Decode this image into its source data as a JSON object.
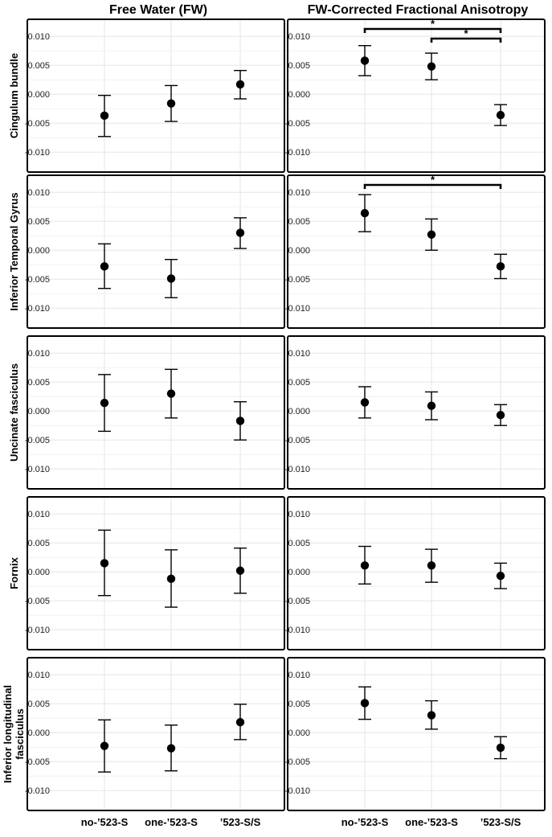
{
  "column_titles": [
    "Free Water (FW)",
    "FW-Corrected Fractional Anisotropy"
  ],
  "row_labels": [
    [
      "Cingulum bundle"
    ],
    [
      "Inferior Temporal Gyrus"
    ],
    [
      "Uncinate fasciculus"
    ],
    [
      "Fornix"
    ],
    [
      "Inferior longitudinal",
      "fasciculus"
    ]
  ],
  "x_categories": [
    "no-’523-S",
    "one-’523-S",
    "’523-S/S"
  ],
  "y_ticks": [
    "0.010",
    "0.005",
    "0.000",
    "-0.005",
    "-0.010"
  ],
  "significance_marker": "*",
  "colors": {
    "point": "#000000",
    "grid": "#e6e6e6",
    "frame": "#000000"
  },
  "chart_data": [
    {
      "type": "scatter",
      "panel": "Cingulum bundle / Free Water (FW)",
      "categories": [
        "no-’523-S",
        "one-’523-S",
        "’523-S/S"
      ],
      "ylim": [
        -0.0115,
        0.011
      ],
      "series": [
        {
          "values": [
            -0.0037,
            -0.0016,
            0.0017
          ],
          "lower": [
            -0.0073,
            -0.0047,
            -0.0008
          ],
          "upper": [
            -0.0002,
            0.0015,
            0.0041
          ]
        }
      ],
      "significance": []
    },
    {
      "type": "scatter",
      "panel": "Cingulum bundle / FW-Corrected Fractional Anisotropy",
      "categories": [
        "no-’523-S",
        "one-’523-S",
        "’523-S/S"
      ],
      "ylim": [
        -0.0115,
        0.011
      ],
      "series": [
        {
          "values": [
            0.0058,
            0.0048,
            -0.0036
          ],
          "lower": [
            0.0032,
            0.0025,
            -0.0054
          ],
          "upper": [
            0.0084,
            0.0071,
            -0.0018
          ]
        }
      ],
      "significance": [
        {
          "from": 0,
          "to": 2,
          "label": "*"
        },
        {
          "from": 1,
          "to": 2,
          "label": "*"
        }
      ]
    },
    {
      "type": "scatter",
      "panel": "Inferior Temporal Gyrus / Free Water (FW)",
      "categories": [
        "no-’523-S",
        "one-’523-S",
        "’523-S/S"
      ],
      "ylim": [
        -0.0115,
        0.011
      ],
      "series": [
        {
          "values": [
            -0.0028,
            -0.0049,
            0.003
          ],
          "lower": [
            -0.0066,
            -0.0082,
            0.0003
          ],
          "upper": [
            0.0011,
            -0.0016,
            0.0056
          ]
        }
      ],
      "significance": []
    },
    {
      "type": "scatter",
      "panel": "Inferior Temporal Gyrus / FW-Corrected Fractional Anisotropy",
      "categories": [
        "no-’523-S",
        "one-’523-S",
        "’523-S/S"
      ],
      "ylim": [
        -0.0115,
        0.011
      ],
      "series": [
        {
          "values": [
            0.0064,
            0.0027,
            -0.0028
          ],
          "lower": [
            0.0032,
            0.0,
            -0.0049
          ],
          "upper": [
            0.0096,
            0.0054,
            -0.0007
          ]
        }
      ],
      "significance": [
        {
          "from": 0,
          "to": 2,
          "label": "*"
        }
      ]
    },
    {
      "type": "scatter",
      "panel": "Uncinate fasciculus / Free Water (FW)",
      "categories": [
        "no-’523-S",
        "one-’523-S",
        "’523-S/S"
      ],
      "ylim": [
        -0.0115,
        0.011
      ],
      "series": [
        {
          "values": [
            0.0014,
            0.003,
            -0.0017
          ],
          "lower": [
            -0.0035,
            -0.0012,
            -0.005
          ],
          "upper": [
            0.0063,
            0.0072,
            0.0016
          ]
        }
      ],
      "significance": []
    },
    {
      "type": "scatter",
      "panel": "Uncinate fasciculus / FW-Corrected Fractional Anisotropy",
      "categories": [
        "no-’523-S",
        "one-’523-S",
        "’523-S/S"
      ],
      "ylim": [
        -0.0115,
        0.011
      ],
      "series": [
        {
          "values": [
            0.0015,
            0.0009,
            -0.0007
          ],
          "lower": [
            -0.0012,
            -0.0015,
            -0.0025
          ],
          "upper": [
            0.0042,
            0.0033,
            0.0011
          ]
        }
      ],
      "significance": []
    },
    {
      "type": "scatter",
      "panel": "Fornix / Free Water (FW)",
      "categories": [
        "no-’523-S",
        "one-’523-S",
        "’523-S/S"
      ],
      "ylim": [
        -0.0115,
        0.011
      ],
      "series": [
        {
          "values": [
            0.0015,
            -0.0012,
            0.0002
          ],
          "lower": [
            -0.0041,
            -0.0061,
            -0.0037
          ],
          "upper": [
            0.0072,
            0.0038,
            0.0041
          ]
        }
      ],
      "significance": []
    },
    {
      "type": "scatter",
      "panel": "Fornix / FW-Corrected Fractional Anisotropy",
      "categories": [
        "no-’523-S",
        "one-’523-S",
        "’523-S/S"
      ],
      "ylim": [
        -0.0115,
        0.011
      ],
      "series": [
        {
          "values": [
            0.0011,
            0.0011,
            -0.0007
          ],
          "lower": [
            -0.0021,
            -0.0018,
            -0.0029
          ],
          "upper": [
            0.0044,
            0.0039,
            0.0015
          ]
        }
      ],
      "significance": []
    },
    {
      "type": "scatter",
      "panel": "Inferior longitudinal fasciculus / Free Water (FW)",
      "categories": [
        "no-’523-S",
        "one-’523-S",
        "’523-S/S"
      ],
      "ylim": [
        -0.0115,
        0.011
      ],
      "series": [
        {
          "values": [
            -0.0023,
            -0.0027,
            0.0018
          ],
          "lower": [
            -0.0068,
            -0.0066,
            -0.0012
          ],
          "upper": [
            0.0022,
            0.0013,
            0.0049
          ]
        }
      ],
      "significance": []
    },
    {
      "type": "scatter",
      "panel": "Inferior longitudinal fasciculus / FW-Corrected Fractional Anisotropy",
      "categories": [
        "no-’523-S",
        "one-’523-S",
        "’523-S/S"
      ],
      "ylim": [
        -0.0115,
        0.011
      ],
      "series": [
        {
          "values": [
            0.0051,
            0.003,
            -0.0026
          ],
          "lower": [
            0.0023,
            0.0006,
            -0.0045
          ],
          "upper": [
            0.0079,
            0.0055,
            -0.0007
          ]
        }
      ],
      "significance": []
    }
  ]
}
